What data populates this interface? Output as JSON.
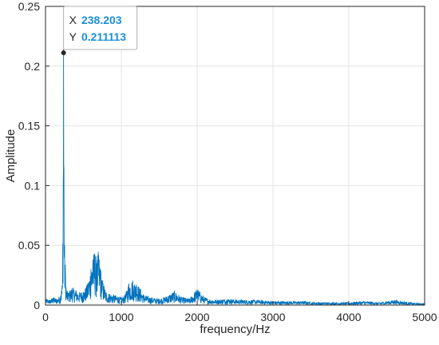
{
  "chart_data": {
    "type": "line",
    "title": "",
    "xlabel": "frequency/Hz",
    "ylabel": "Amplitude",
    "xlim": [
      0,
      5000
    ],
    "ylim": [
      0,
      0.25
    ],
    "xticks": [
      0,
      1000,
      2000,
      3000,
      4000,
      5000
    ],
    "xtick_labels": [
      "0",
      "1000",
      "2000",
      "3000",
      "4000",
      "5000"
    ],
    "yticks": [
      0,
      0.05,
      0.1,
      0.15,
      0.2,
      0.25
    ],
    "ytick_labels": [
      "0",
      "0.05",
      "0.1",
      "0.15",
      "0.2",
      "0.25"
    ],
    "grid": true,
    "line_color": "#0072bd",
    "series": [
      {
        "x": [
          0,
          50,
          100,
          150,
          200,
          225,
          238.203,
          250,
          275,
          300,
          350,
          400,
          450,
          500,
          550,
          600,
          625,
          650,
          675,
          700,
          725,
          750,
          800,
          850,
          900,
          950,
          1000,
          1050,
          1100,
          1150,
          1200,
          1250,
          1300,
          1400,
          1500,
          1600,
          1700,
          1800,
          1900,
          2000,
          2100,
          2200,
          2400,
          2600,
          2800,
          3000,
          3200,
          3400,
          3600,
          3800,
          4000,
          4200,
          4400,
          4600,
          4800,
          5000
        ],
        "y": [
          0.005,
          0.004,
          0.006,
          0.005,
          0.008,
          0.02,
          0.211113,
          0.05,
          0.012,
          0.01,
          0.014,
          0.012,
          0.01,
          0.011,
          0.016,
          0.03,
          0.038,
          0.043,
          0.035,
          0.042,
          0.03,
          0.02,
          0.01,
          0.009,
          0.008,
          0.007,
          0.006,
          0.008,
          0.018,
          0.02,
          0.017,
          0.013,
          0.008,
          0.006,
          0.005,
          0.007,
          0.011,
          0.006,
          0.005,
          0.013,
          0.006,
          0.004,
          0.005,
          0.004,
          0.004,
          0.003,
          0.003,
          0.003,
          0.002,
          0.002,
          0.002,
          0.003,
          0.002,
          0.004,
          0.002,
          0.001
        ]
      }
    ],
    "datatip": {
      "x_label": "X",
      "x_value": "238.203",
      "y_label": "Y",
      "y_value": "0.211113",
      "x": 238.203,
      "y": 0.211113
    }
  }
}
